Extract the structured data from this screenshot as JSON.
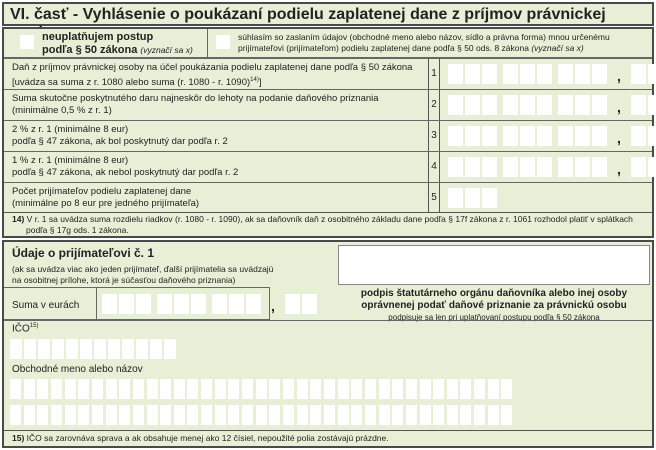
{
  "title": "VI. časť - Vyhlásenie o poukázaní podielu zaplatenej dane z príjmov právnickej osoby",
  "checkbox1": {
    "line1": "neuplatňujem postup",
    "line2": "podľa § 50 zákona",
    "note": "(vyznačí sa x)"
  },
  "checkbox2": {
    "line1": "súhlasím so zaslaním údajov (obchodné meno alebo názov, sídlo a právna forma) mnou určenému",
    "line2": "prijímateľovi (prijímateľom) podielu zaplatenej dane podľa § 50 ods. 8 zákona",
    "note": "(vyznačí sa x)"
  },
  "rows": [
    {
      "num": "1",
      "line1": "Daň z príjmov právnickej osoby na účel poukázania podielu zaplatenej dane podľa § 50 zákona",
      "line2": "[uvádza sa suma z r. 1080 alebo suma (r. 1080 - r. 1090)",
      "sup": "14)",
      "tail": "]"
    },
    {
      "num": "2",
      "line1": "Suma skutočne poskytnutého daru najneskôr do lehoty na podanie daňového priznania",
      "line2": "(minimálne 0,5 % z r. 1)"
    },
    {
      "num": "3",
      "line1": "2 % z r. 1 (minimálne 8 eur)",
      "line2": "podľa § 47 zákona, ak bol poskytnutý dar podľa r. 2"
    },
    {
      "num": "4",
      "line1": "1 % z r. 1 (minimálne 8 eur)",
      "line2": "podľa § 47 zákona, ak nebol poskytnutý dar podľa r. 2"
    },
    {
      "num": "5",
      "line1": "Počet prijímateľov podielu zaplatenej dane",
      "line2": "(minimálne po 8 eur pre jedného prijímateľa)"
    }
  ],
  "comma": ",",
  "footnote14": {
    "num": "14)",
    "text": "V r. 1 sa uvádza suma rozdielu riadkov (r. 1080 - r. 1090), ak sa daňovník daň z osobitného základu dane podľa § 17f zákona z r. 1061 rozhodol platiť v splátkach",
    "text2": "podľa § 17g ods. 1 zákona."
  },
  "recipient": {
    "heading": "Údaje o prijímateľovi č. 1",
    "note1": "(ak sa uvádza viac ako jeden prijímateľ, ďalší prijímatelia sa uvádzajú",
    "note2": "na osobitnej prílohe, ktorá je súčasťou daňového priznania)",
    "sum_label": "Suma v eurách",
    "ico_label": "IČO",
    "ico_sup": "15)",
    "name_label": "Obchodné meno alebo názov"
  },
  "signature": {
    "line1": "podpis štatutárneho orgánu daňovníka alebo inej osoby",
    "line2": "oprávnenej podať daňové priznanie za právnickú osobu",
    "line3": "podpisuje sa len pri uplatňovaní postupu podľa § 50 zákona"
  },
  "footnote15": {
    "num": "15)",
    "text": "IČO sa zarovnáva sprava a ak obsahuje menej ako 12 čísiel, nepoužité polia zostávajú prázdne."
  }
}
